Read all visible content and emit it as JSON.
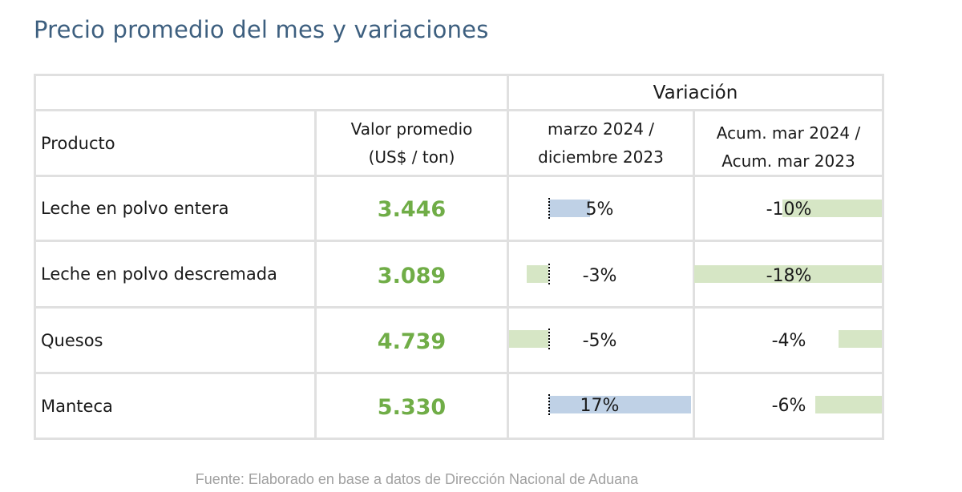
{
  "title": "Precio promedio del mes y variaciones",
  "header": {
    "group_label": "Variación",
    "product_col": "Producto",
    "value_col_line1": "Valor promedio",
    "value_col_line2": "(US$ / ton)",
    "var1_line1": "marzo 2024 /",
    "var1_line2": "diciembre 2023",
    "var2_line1": "Acum. mar 2024 /",
    "var2_line2": "Acum. mar 2023"
  },
  "rows": [
    {
      "product": "Leche en polvo entera",
      "value": "3.446",
      "var_month": "5%",
      "var_month_num": 5,
      "var_acum": "-10%",
      "var_acum_num": -10
    },
    {
      "product": "Leche en polvo descremada",
      "value": "3.089",
      "var_month": "-3%",
      "var_month_num": -3,
      "var_acum": "-18%",
      "var_acum_num": -18
    },
    {
      "product": "Quesos",
      "value": "4.739",
      "var_month": "-5%",
      "var_month_num": -5,
      "var_acum": "-4%",
      "var_acum_num": -4
    },
    {
      "product": "Manteca",
      "value": "5.330",
      "var_month": "17%",
      "var_month_num": 17,
      "var_acum": "-6%",
      "var_acum_num": -6
    }
  ],
  "colors": {
    "positive_bar": "#bfd1e6",
    "negative_bar": "#d6e6c5",
    "value_text": "#70ad47",
    "title_text": "#3d5f7f"
  },
  "source": "Fuente: Elaborado en base a datos de Dirección Nacional de Aduana"
}
